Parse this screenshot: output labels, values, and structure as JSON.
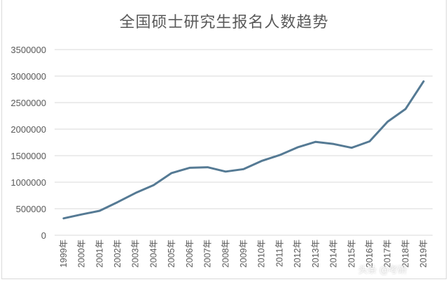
{
  "chart_data": {
    "type": "line",
    "title": "全国硕士研究生报名人数趋势",
    "xlabel": "",
    "ylabel": "",
    "categories": [
      "1999年",
      "2000年",
      "2001年",
      "2002年",
      "2003年",
      "2004年",
      "2005年",
      "2006年",
      "2007年",
      "2008年",
      "2009年",
      "2010年",
      "2011年",
      "2012年",
      "2013年",
      "2014年",
      "2015年",
      "2016年",
      "2017年",
      "2018年",
      "2019年"
    ],
    "series": [
      {
        "name": "报名人数",
        "color": "#557a94",
        "values": [
          319000,
          392000,
          460000,
          624000,
          797000,
          945000,
          1172000,
          1271000,
          1282000,
          1200000,
          1246000,
          1400000,
          1511000,
          1656000,
          1760000,
          1720000,
          1649000,
          1770000,
          2140000,
          2380000,
          2900000
        ]
      }
    ],
    "yticks": [
      "0",
      "500000",
      "1000000",
      "1500000",
      "2000000",
      "2500000",
      "3000000",
      "3500000"
    ],
    "ylim": [
      0,
      3500000
    ],
    "grid": true,
    "legend": "none"
  },
  "watermark": "头条 @考研"
}
